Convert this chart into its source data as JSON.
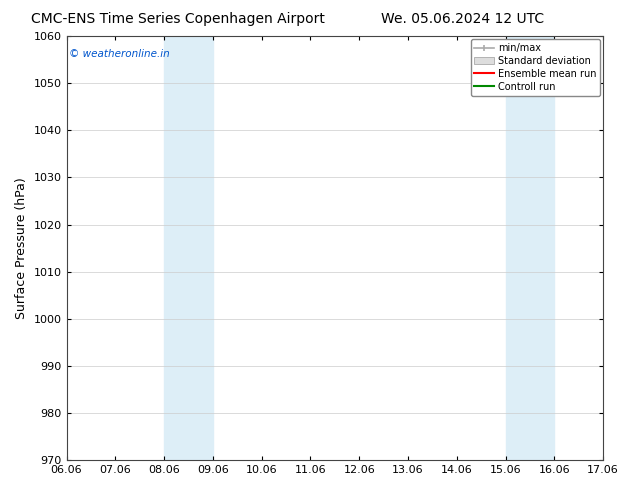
{
  "title_left": "CMC-ENS Time Series Copenhagen Airport",
  "title_right": "We. 05.06.2024 12 UTC",
  "ylabel": "Surface Pressure (hPa)",
  "ylim": [
    970,
    1060
  ],
  "yticks": [
    970,
    980,
    990,
    1000,
    1010,
    1020,
    1030,
    1040,
    1050,
    1060
  ],
  "xtick_labels": [
    "06.06",
    "07.06",
    "08.06",
    "09.06",
    "10.06",
    "11.06",
    "12.06",
    "13.06",
    "14.06",
    "15.06",
    "16.06",
    "17.06"
  ],
  "shaded_bands": [
    {
      "start": 2,
      "end": 3
    },
    {
      "start": 9,
      "end": 10
    }
  ],
  "shaded_color": "#ddeef7",
  "watermark": "© weatheronline.in",
  "watermark_color": "#0055cc",
  "legend_items": [
    {
      "label": "min/max",
      "color": "#aaaaaa",
      "style": "hline"
    },
    {
      "label": "Standard deviation",
      "color": "#cccccc",
      "style": "band"
    },
    {
      "label": "Ensemble mean run",
      "color": "#ff0000",
      "style": "line"
    },
    {
      "label": "Controll run",
      "color": "#008800",
      "style": "line"
    }
  ],
  "background_color": "#ffffff",
  "grid_color": "#cccccc",
  "title_fontsize": 10,
  "tick_fontsize": 8,
  "ylabel_fontsize": 9
}
